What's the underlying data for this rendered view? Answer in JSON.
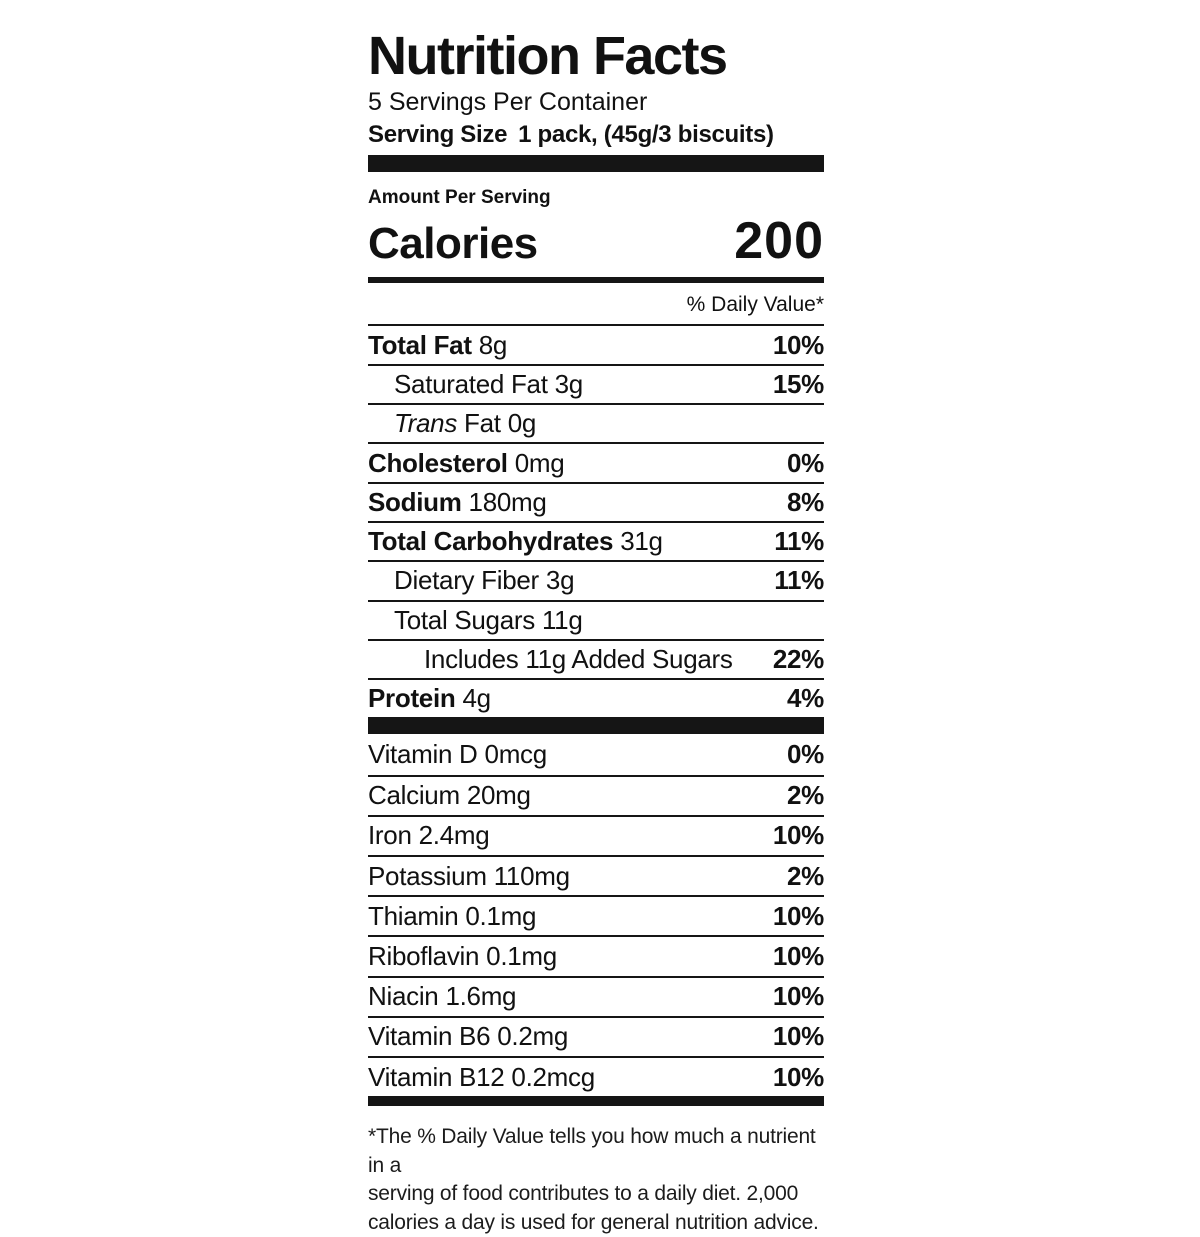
{
  "colors": {
    "ink": "#151515",
    "background": "#ffffff"
  },
  "label": {
    "title": "Nutrition Facts",
    "servings_per_container": "5 Servings Per Container",
    "serving_size_label": "Serving Size",
    "serving_size_value": "1 pack, (45g/3 biscuits)",
    "amount_per_serving": "Amount Per Serving",
    "calories_label": "Calories",
    "calories_value": "200",
    "daily_value_header": "% Daily Value*",
    "nutrients": [
      {
        "name": "Total Fat",
        "amount": "8g",
        "dv": "10%"
      },
      {
        "name": "Saturated Fat",
        "amount": "3g",
        "dv": "15%"
      },
      {
        "name_italic": "Trans",
        "name": "Fat",
        "amount": "0g",
        "dv": ""
      },
      {
        "name": "Cholesterol",
        "amount": "0mg",
        "dv": "0%"
      },
      {
        "name": "Sodium",
        "amount": "180mg",
        "dv": "8%"
      },
      {
        "name": "Total Carbohydrates",
        "amount": "31g",
        "dv": "11%"
      },
      {
        "name": "Dietary Fiber",
        "amount": "3g",
        "dv": "11%"
      },
      {
        "name": "Total Sugars",
        "amount": "11g",
        "dv": ""
      },
      {
        "name": "Includes 11g Added Sugars",
        "amount": "",
        "dv": "22%"
      },
      {
        "name": "Protein",
        "amount": "4g",
        "dv": "4%"
      }
    ],
    "micronutrients": [
      {
        "name": "Vitamin D",
        "amount": "0mcg",
        "dv": "0%"
      },
      {
        "name": "Calcium",
        "amount": "20mg",
        "dv": "2%"
      },
      {
        "name": "Iron",
        "amount": "2.4mg",
        "dv": "10%"
      },
      {
        "name": "Potassium",
        "amount": "110mg",
        "dv": "2%"
      },
      {
        "name": "Thiamin",
        "amount": "0.1mg",
        "dv": "10%"
      },
      {
        "name": "Riboflavin",
        "amount": "0.1mg",
        "dv": "10%"
      },
      {
        "name": "Niacin",
        "amount": "1.6mg",
        "dv": "10%"
      },
      {
        "name": "Vitamin B6",
        "amount": "0.2mg",
        "dv": "10%"
      },
      {
        "name": "Vitamin B12",
        "amount": "0.2mcg",
        "dv": "10%"
      }
    ],
    "footnote_lines": [
      "*The % Daily Value tells you how much a nutrient in a",
      "serving of food contributes to a daily diet. 2,000",
      "calories a day is used for general nutrition advice."
    ]
  }
}
